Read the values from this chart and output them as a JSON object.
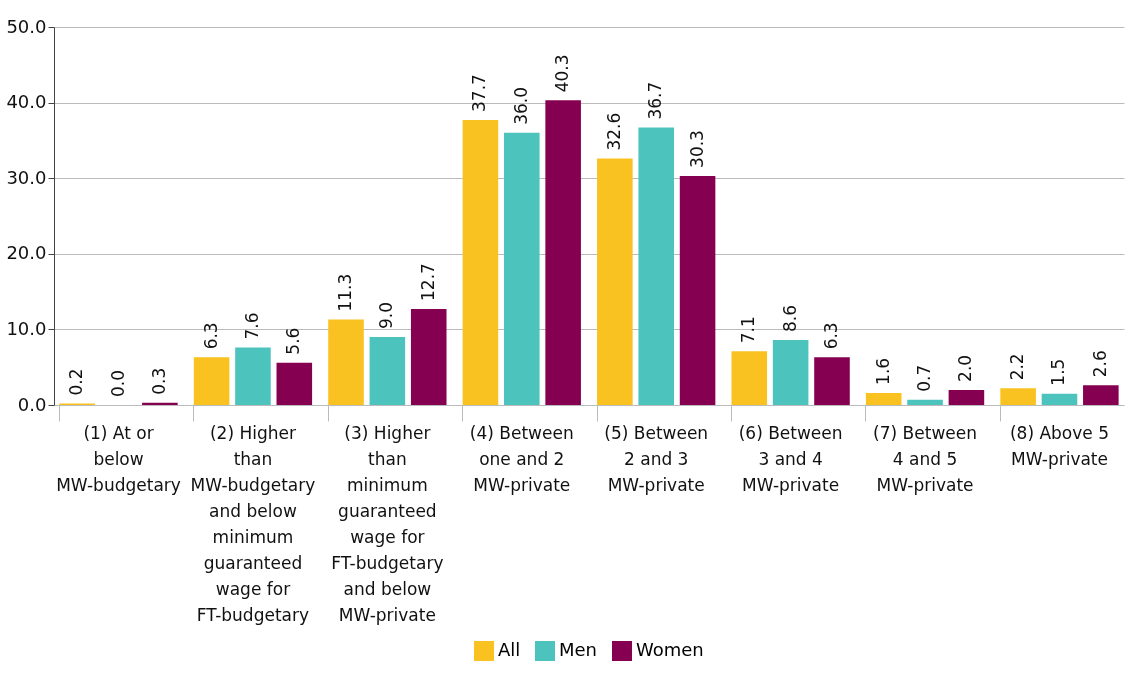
{
  "chart_data": {
    "type": "bar",
    "categories": [
      "(1) At or below MW-budgetary",
      "(2) Higher than MW-budgetary and below minimum guaranteed wage for FT-budgetary",
      "(3) Higher than minimum guaranteed wage for FT-budgetary and below MW-private",
      "(4) Between one and 2 MW-private",
      "(5) Between 2 and 3 MW-private",
      "(6) Between 3 and 4 MW-private",
      "(7) Between 4 and 5 MW-private",
      "(8) Above 5 MW-private"
    ],
    "series": [
      {
        "name": "All",
        "color": "#f9c221",
        "values": [
          0.2,
          6.3,
          11.3,
          37.7,
          32.6,
          7.1,
          1.6,
          2.2
        ],
        "value_labels": [
          "0.2",
          "6.3",
          "11.3",
          "37.7",
          "32.6",
          "7.1",
          "1.6",
          "2.2"
        ]
      },
      {
        "name": "Men",
        "color": "#4cc3bd",
        "values": [
          0.0,
          7.6,
          9.0,
          36.0,
          36.7,
          8.6,
          0.7,
          1.5
        ],
        "value_labels": [
          "0.0",
          "7.6",
          "9.0",
          "36.0",
          "36.7",
          "8.6",
          "0.7",
          "1.5"
        ]
      },
      {
        "name": "Women",
        "color": "#860052",
        "values": [
          0.3,
          5.6,
          12.7,
          40.3,
          30.3,
          6.3,
          2.0,
          2.6
        ],
        "value_labels": [
          "0.3",
          "5.6",
          "12.7",
          "40.3",
          "30.3",
          "6.3",
          "2.0",
          "2.6"
        ]
      }
    ],
    "ylim": [
      0,
      50
    ],
    "yticks": [
      {
        "value": 0,
        "label": "0.0"
      },
      {
        "value": 10,
        "label": "10.0"
      },
      {
        "value": 20,
        "label": "20.0"
      },
      {
        "value": 30,
        "label": "30.0"
      },
      {
        "value": 40,
        "label": "40.0"
      },
      {
        "value": 50,
        "label": "50.0"
      }
    ],
    "grid": "y",
    "legend": "bottom"
  }
}
